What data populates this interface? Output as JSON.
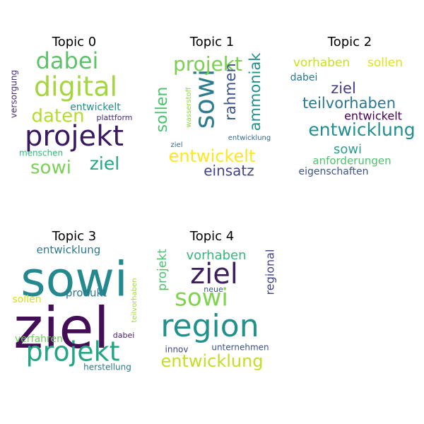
{
  "chart_data": {
    "type": "wordcloud",
    "panels": [
      {
        "title": "Topic 0",
        "words": [
          {
            "text": "projekt",
            "color": "#3a1a5e"
          },
          {
            "text": "digital",
            "color": "#a5d63f"
          },
          {
            "text": "dabei",
            "color": "#5cc36a"
          },
          {
            "text": "daten",
            "color": "#b5de2b"
          },
          {
            "text": "ziel",
            "color": "#22a784"
          },
          {
            "text": "sowi",
            "color": "#7ccf58"
          },
          {
            "text": "entwickelt",
            "color": "#1f8f8a"
          },
          {
            "text": "menschen",
            "color": "#35b779"
          },
          {
            "text": "plattform",
            "color": "#472c7a"
          },
          {
            "text": "versorgung",
            "color": "#472c7a"
          }
        ]
      },
      {
        "title": "Topic 1",
        "words": [
          {
            "text": "sowi",
            "color": "#2c7e8e"
          },
          {
            "text": "projekt",
            "color": "#7ad151"
          },
          {
            "text": "entwickelt",
            "color": "#fde725"
          },
          {
            "text": "einsatz",
            "color": "#414487"
          },
          {
            "text": "sollen",
            "color": "#4ac16d"
          },
          {
            "text": "rahmen",
            "color": "#3b528b"
          },
          {
            "text": "ammoniak",
            "color": "#21918c"
          },
          {
            "text": "wasserstoff",
            "color": "#90d743"
          },
          {
            "text": "ziel",
            "color": "#31688e"
          },
          {
            "text": "entwicklung",
            "color": "#31688e"
          }
        ]
      },
      {
        "title": "Topic 2",
        "words": [
          {
            "text": "entwicklung",
            "color": "#21908d"
          },
          {
            "text": "teilvorhaben",
            "color": "#2a788e"
          },
          {
            "text": "ziel",
            "color": "#433e85"
          },
          {
            "text": "sowi",
            "color": "#2a9d8f"
          },
          {
            "text": "vorhaben",
            "color": "#c8e020"
          },
          {
            "text": "sollen",
            "color": "#dde318"
          },
          {
            "text": "dabei",
            "color": "#2a788e"
          },
          {
            "text": "entwickelt",
            "color": "#440154"
          },
          {
            "text": "anforderungen",
            "color": "#4cc26c"
          },
          {
            "text": "eigenschaften",
            "color": "#3b528b"
          }
        ]
      },
      {
        "title": "Topic 3",
        "words": [
          {
            "text": "sowi",
            "color": "#23898e"
          },
          {
            "text": "ziel",
            "color": "#440e57"
          },
          {
            "text": "projekt",
            "color": "#25a584"
          },
          {
            "text": "entwicklung",
            "color": "#2a788e"
          },
          {
            "text": "sollen",
            "color": "#d8e219"
          },
          {
            "text": "produkt",
            "color": "#2a788e"
          },
          {
            "text": "verfahren",
            "color": "#6ccd5a"
          },
          {
            "text": "teilvorhaben",
            "color": "#a2da37"
          },
          {
            "text": "dabei",
            "color": "#481d6f"
          },
          {
            "text": "herstellung",
            "color": "#2a788e"
          }
        ]
      },
      {
        "title": "Topic 4",
        "words": [
          {
            "text": "region",
            "color": "#21918c"
          },
          {
            "text": "ziel",
            "color": "#3f1f5c"
          },
          {
            "text": "sowi",
            "color": "#7fd34e"
          },
          {
            "text": "entwicklung",
            "color": "#c2df23"
          },
          {
            "text": "vorhaben",
            "color": "#35b779"
          },
          {
            "text": "projekt",
            "color": "#4ac16d"
          },
          {
            "text": "regional",
            "color": "#414487"
          },
          {
            "text": "neue",
            "color": "#3b528b"
          },
          {
            "text": "innov",
            "color": "#414487"
          },
          {
            "text": "unternehmen",
            "color": "#3b528b"
          }
        ]
      }
    ]
  }
}
